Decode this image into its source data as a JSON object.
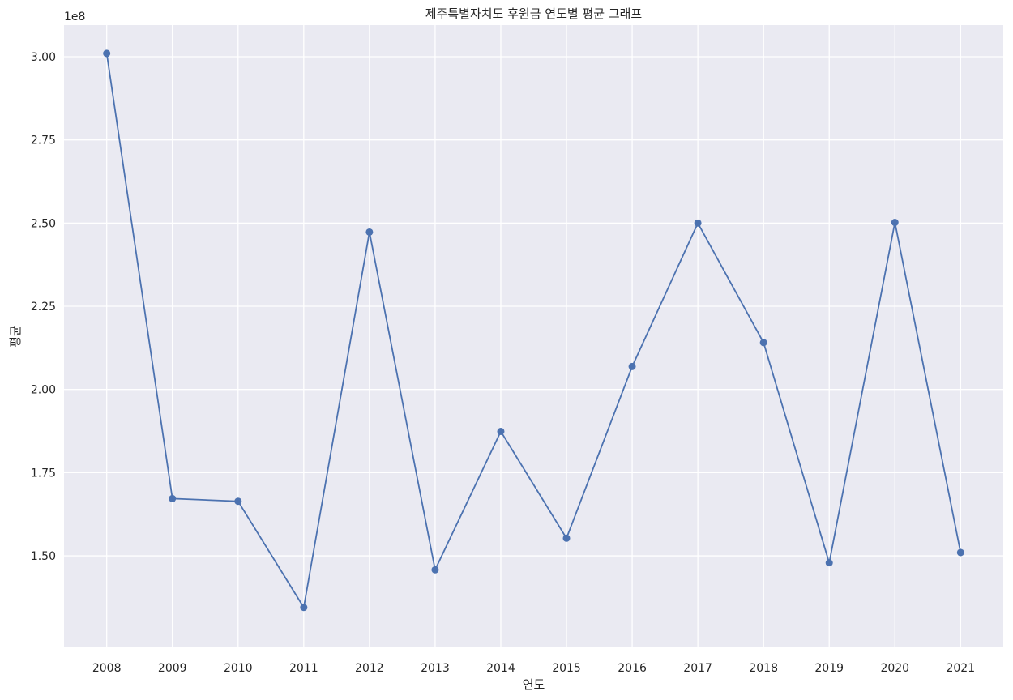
{
  "chart_data": {
    "type": "line",
    "title": "제주특별자치도 후원금 연도별 평균 그래프",
    "xlabel": "연도",
    "ylabel": "평균",
    "y_offset_label": "1e8",
    "x": [
      "2008",
      "2009",
      "2010",
      "2011",
      "2012",
      "2013",
      "2014",
      "2015",
      "2016",
      "2017",
      "2018",
      "2019",
      "2020",
      "2021"
    ],
    "series": [
      {
        "values": [
          301000000,
          167200000,
          166400000,
          134500000,
          247300000,
          145800000,
          187400000,
          155300000,
          206900000,
          250000000,
          214100000,
          147900000,
          250200000,
          151000000
        ],
        "color": "#4c72b0"
      }
    ],
    "ylim": [
      122500000,
      309500000
    ],
    "yticks": [
      150000000,
      175000000,
      200000000,
      225000000,
      250000000,
      275000000,
      300000000
    ],
    "ytick_labels": [
      "1.50",
      "1.75",
      "2.00",
      "2.25",
      "2.50",
      "2.75",
      "3.00"
    ],
    "grid": true,
    "background": "#eaeaf2"
  }
}
